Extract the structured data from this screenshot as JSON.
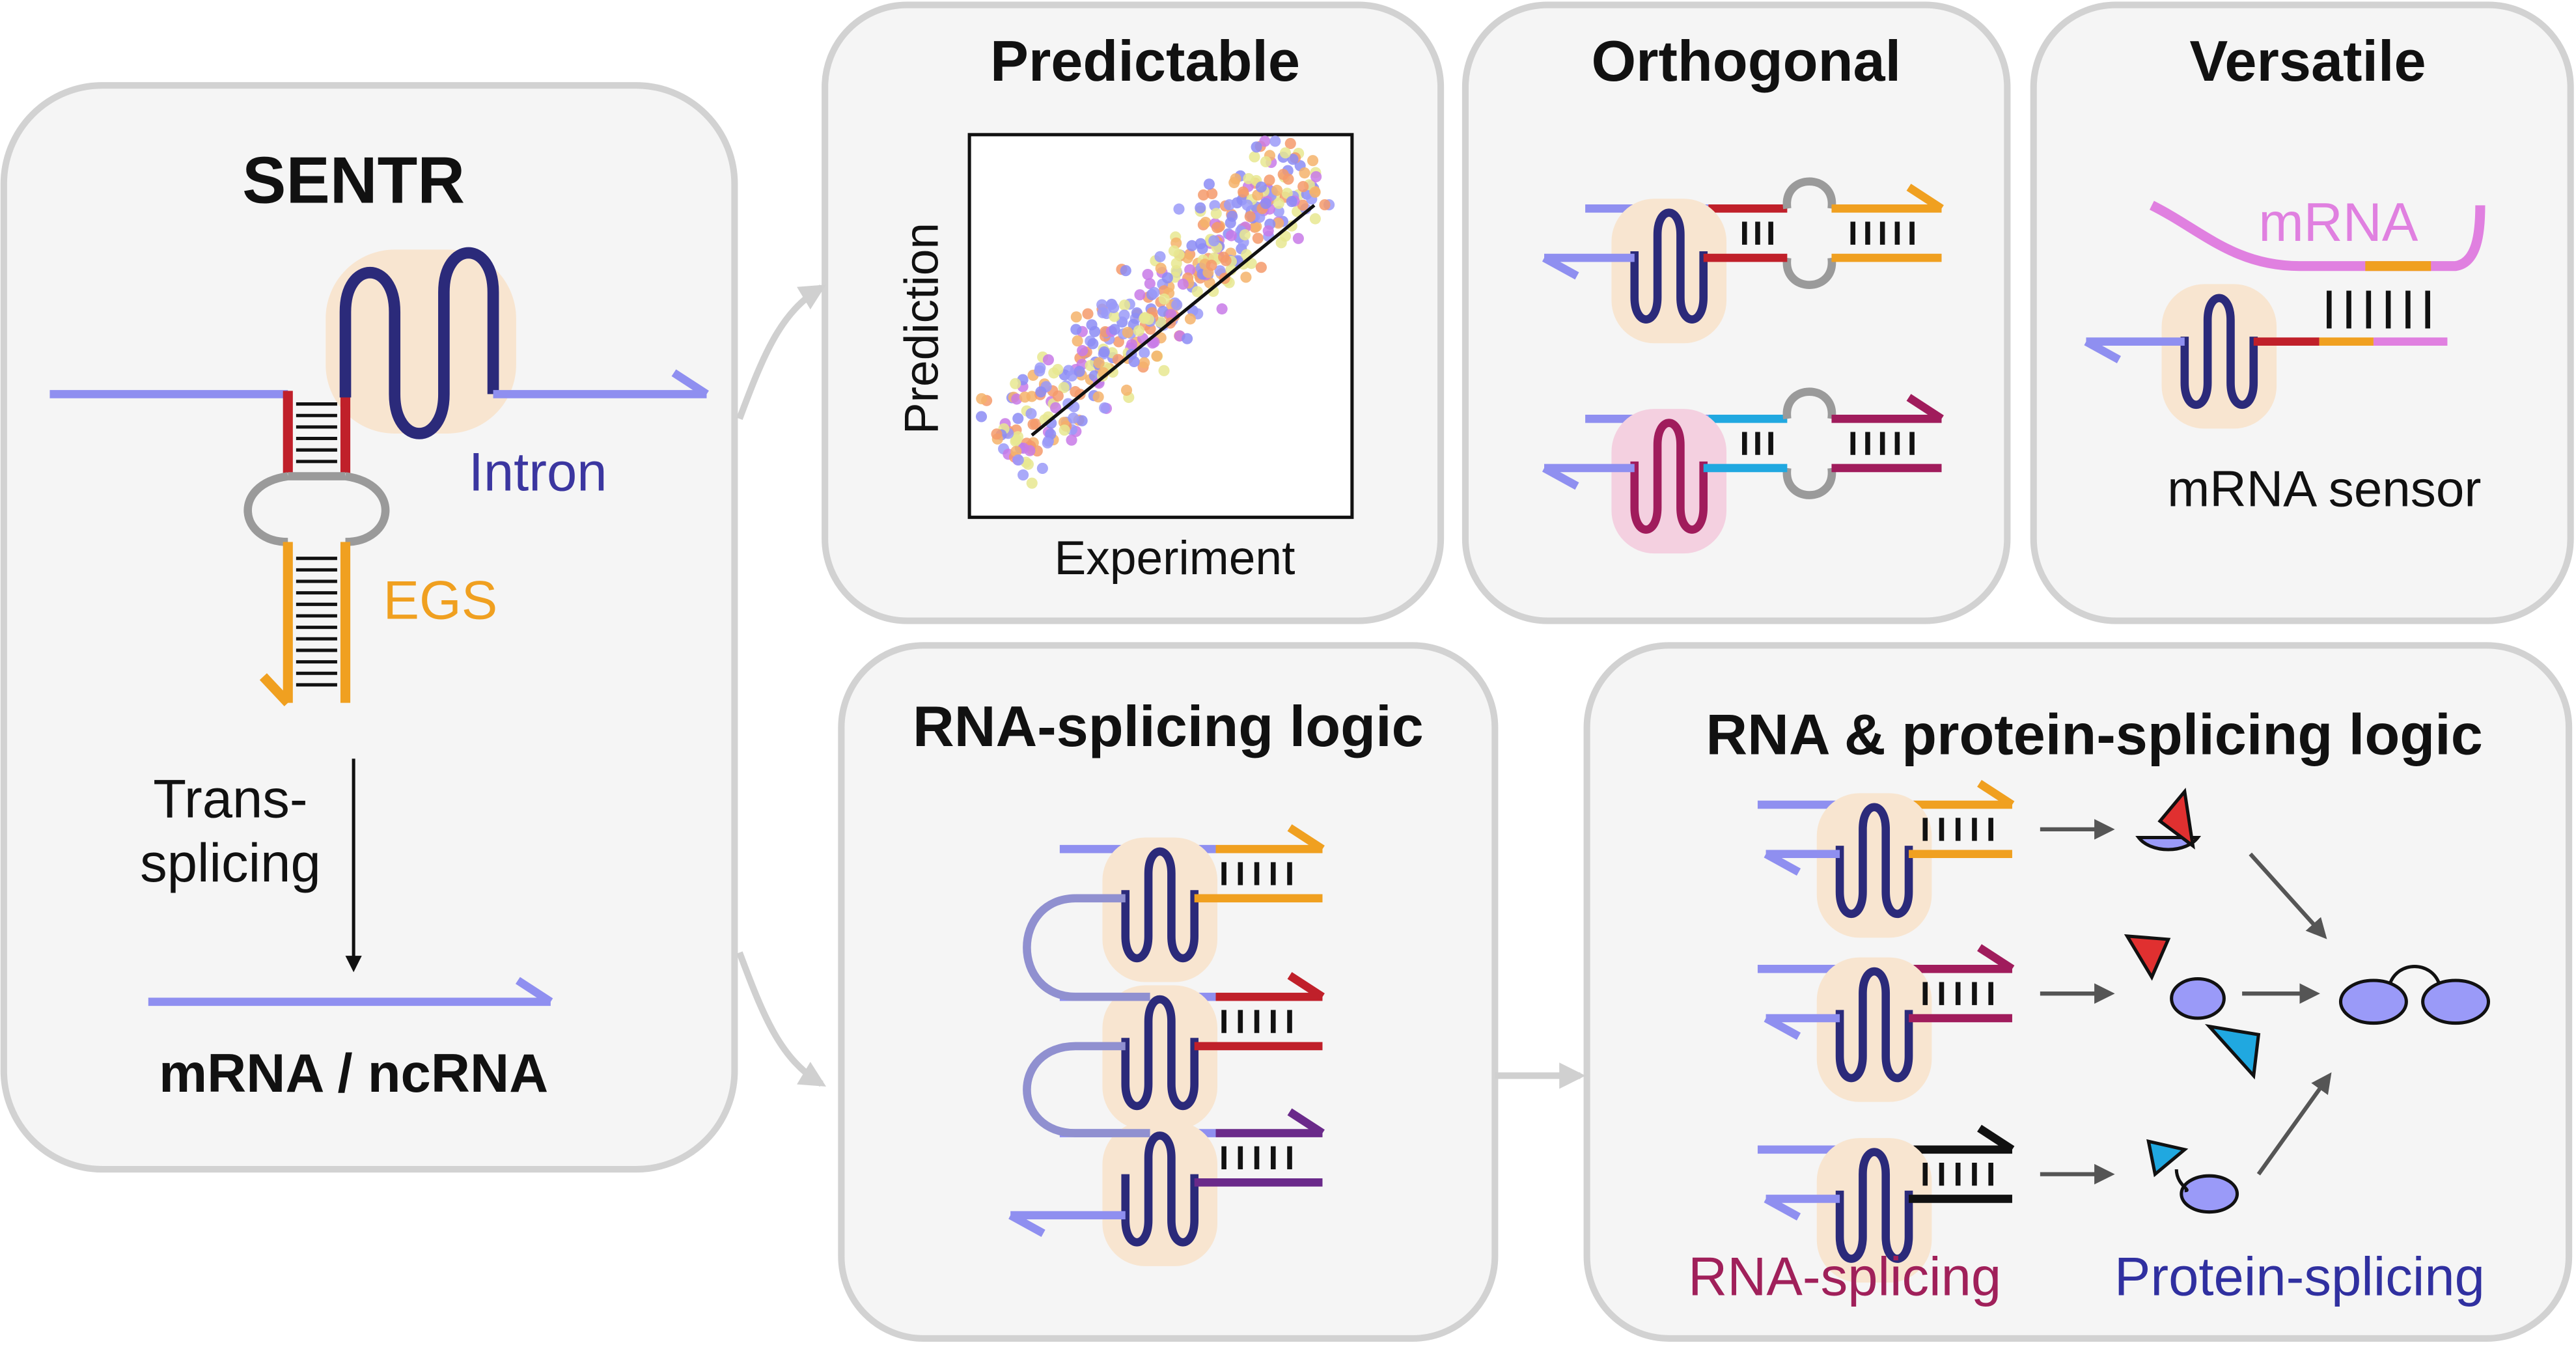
{
  "sentr": {
    "title": "SENTR",
    "intron_label": "Intron",
    "egs_label": "EGS",
    "transition_label": [
      "Trans-",
      "splicing"
    ],
    "product": "mRNA / ncRNA"
  },
  "predictable": {
    "title": "Predictable",
    "y_label": "Prediction",
    "x_label": "Experiment"
  },
  "orthogonal": {
    "title": "Orthogonal"
  },
  "versatile": {
    "title": "Versatile",
    "target_label": "mRNA",
    "caption": "mRNA sensor"
  },
  "rna_logic": {
    "title": "RNA-splicing logic"
  },
  "protein_logic": {
    "title": "RNA & protein-splicing logic",
    "left_caption": "RNA-splicing",
    "right_caption": "Protein-splicing"
  }
}
